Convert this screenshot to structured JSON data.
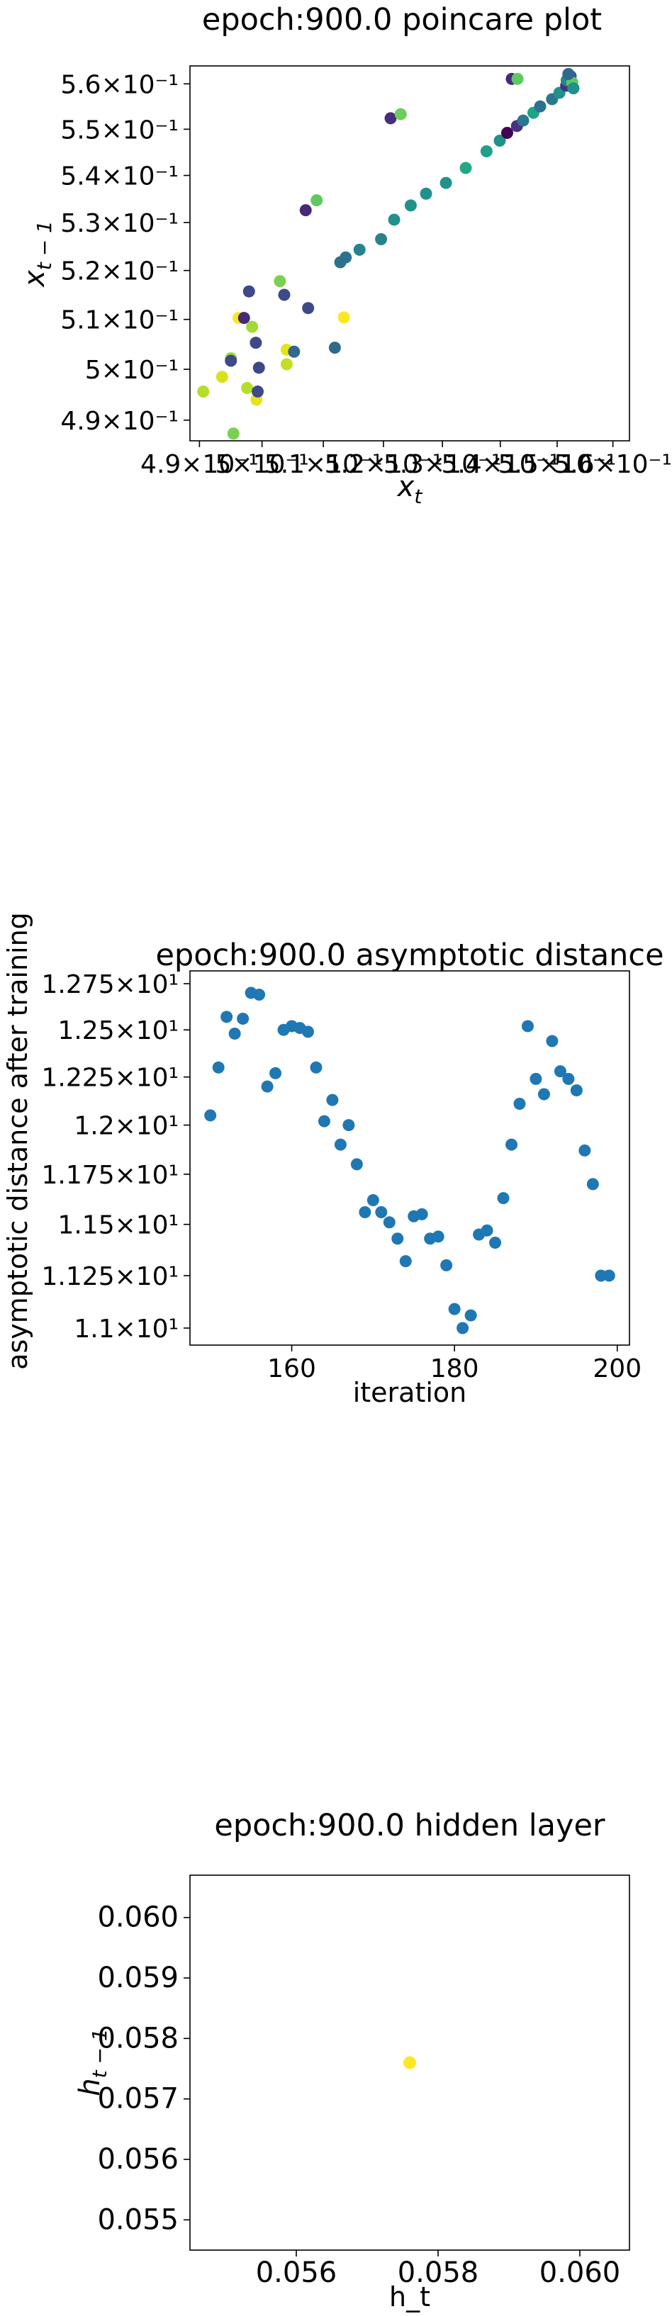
{
  "chart_data": [
    {
      "type": "scatter",
      "title": "epoch:900.0 poincare plot",
      "xlabel": "x_t",
      "ylabel": "x_{t-1}",
      "scale": "log",
      "xlim": [
        0.4885,
        0.563
      ],
      "ylim": [
        0.486,
        0.564
      ],
      "x_ticks": [
        {
          "v": 0.49,
          "label": "4.9×10⁻¹"
        },
        {
          "v": 0.5,
          "label": "5×10⁻¹"
        },
        {
          "v": 0.51,
          "label": "5.1×10⁻¹"
        },
        {
          "v": 0.52,
          "label": "5.2×10⁻¹"
        },
        {
          "v": 0.53,
          "label": "5.3×10⁻¹"
        },
        {
          "v": 0.54,
          "label": "5.4×10⁻¹"
        },
        {
          "v": 0.55,
          "label": "5.5×10⁻¹"
        },
        {
          "v": 0.56,
          "label": "5.6×10⁻¹"
        }
      ],
      "y_ticks": [
        {
          "v": 0.49,
          "label": "4.9×10⁻¹"
        },
        {
          "v": 0.5,
          "label": "5×10⁻¹"
        },
        {
          "v": 0.51,
          "label": "5.1×10⁻¹"
        },
        {
          "v": 0.52,
          "label": "5.2×10⁻¹"
        },
        {
          "v": 0.53,
          "label": "5.3×10⁻¹"
        },
        {
          "v": 0.54,
          "label": "5.4×10⁻¹"
        },
        {
          "v": 0.55,
          "label": "5.5×10⁻¹"
        },
        {
          "v": 0.56,
          "label": "5.6×10⁻¹"
        }
      ],
      "points": [
        {
          "x": 0.4906,
          "y": 0.4956,
          "c": "#b5de2b"
        },
        {
          "x": 0.4936,
          "y": 0.4985,
          "c": "#d8e219"
        },
        {
          "x": 0.495,
          "y": 0.5022,
          "c": "#a0da39"
        },
        {
          "x": 0.495,
          "y": 0.5017,
          "c": "#3e4989"
        },
        {
          "x": 0.4954,
          "y": 0.4874,
          "c": "#7ad151"
        },
        {
          "x": 0.4962,
          "y": 0.5103,
          "c": "#fde725"
        },
        {
          "x": 0.4971,
          "y": 0.5103,
          "c": "#482878"
        },
        {
          "x": 0.4976,
          "y": 0.4963,
          "c": "#b5de2b"
        },
        {
          "x": 0.4979,
          "y": 0.5157,
          "c": "#3e4989"
        },
        {
          "x": 0.4984,
          "y": 0.5085,
          "c": "#a0da39"
        },
        {
          "x": 0.499,
          "y": 0.5053,
          "c": "#3e4989"
        },
        {
          "x": 0.4991,
          "y": 0.494,
          "c": "#e5e419"
        },
        {
          "x": 0.4993,
          "y": 0.4956,
          "c": "#3e4989"
        },
        {
          "x": 0.4995,
          "y": 0.5003,
          "c": "#3e4989"
        },
        {
          "x": 0.5029,
          "y": 0.5178,
          "c": "#7ad151"
        },
        {
          "x": 0.5036,
          "y": 0.515,
          "c": "#3e4989"
        },
        {
          "x": 0.504,
          "y": 0.5039,
          "c": "#e5e419"
        },
        {
          "x": 0.504,
          "y": 0.501,
          "c": "#c2df23"
        },
        {
          "x": 0.5052,
          "y": 0.5035,
          "c": "#31688e"
        },
        {
          "x": 0.5071,
          "y": 0.5326,
          "c": "#482878"
        },
        {
          "x": 0.5075,
          "y": 0.5123,
          "c": "#3e4989"
        },
        {
          "x": 0.5089,
          "y": 0.5347,
          "c": "#5ec962"
        },
        {
          "x": 0.5119,
          "y": 0.5043,
          "c": "#31688e"
        },
        {
          "x": 0.5128,
          "y": 0.5217,
          "c": "#2c728e"
        },
        {
          "x": 0.5134,
          "y": 0.5104,
          "c": "#fde725"
        },
        {
          "x": 0.5137,
          "y": 0.5227,
          "c": "#2c728e"
        },
        {
          "x": 0.516,
          "y": 0.5243,
          "c": "#26828e"
        },
        {
          "x": 0.5196,
          "y": 0.5265,
          "c": "#26828e"
        },
        {
          "x": 0.5212,
          "y": 0.5524,
          "c": "#472d7b"
        },
        {
          "x": 0.5218,
          "y": 0.5306,
          "c": "#21918c"
        },
        {
          "x": 0.5229,
          "y": 0.5533,
          "c": "#6ccd5a"
        },
        {
          "x": 0.5246,
          "y": 0.5336,
          "c": "#21918c"
        },
        {
          "x": 0.5272,
          "y": 0.5361,
          "c": "#21918c"
        },
        {
          "x": 0.5306,
          "y": 0.5384,
          "c": "#21918c"
        },
        {
          "x": 0.534,
          "y": 0.5416,
          "c": "#22a884"
        },
        {
          "x": 0.5376,
          "y": 0.5452,
          "c": "#1fa088"
        },
        {
          "x": 0.5399,
          "y": 0.5475,
          "c": "#21918c"
        },
        {
          "x": 0.5412,
          "y": 0.5492,
          "c": "#440154"
        },
        {
          "x": 0.542,
          "y": 0.5611,
          "c": "#482878"
        },
        {
          "x": 0.543,
          "y": 0.5611,
          "c": "#5ec962"
        },
        {
          "x": 0.5429,
          "y": 0.5507,
          "c": "#46337e"
        },
        {
          "x": 0.544,
          "y": 0.5519,
          "c": "#2a788e"
        },
        {
          "x": 0.5458,
          "y": 0.5536,
          "c": "#20a486"
        },
        {
          "x": 0.547,
          "y": 0.555,
          "c": "#2c728e"
        },
        {
          "x": 0.5491,
          "y": 0.5566,
          "c": "#2a788e"
        },
        {
          "x": 0.5504,
          "y": 0.558,
          "c": "#21918c"
        },
        {
          "x": 0.5516,
          "y": 0.5596,
          "c": "#46337e"
        },
        {
          "x": 0.5517,
          "y": 0.5608,
          "c": "#25848e"
        },
        {
          "x": 0.5524,
          "y": 0.5617,
          "c": "#3b528b"
        },
        {
          "x": 0.5527,
          "y": 0.5603,
          "c": "#5ec962"
        },
        {
          "x": 0.5529,
          "y": 0.559,
          "c": "#21918c"
        },
        {
          "x": 0.552,
          "y": 0.5622,
          "c": "#31688e"
        }
      ]
    },
    {
      "type": "scatter",
      "title": "epoch:900.0 asymptotic distance",
      "xlabel": "iteration",
      "ylabel": "asymptotic distance after training",
      "y_scale": "log",
      "xlim": [
        147.5,
        201.5
      ],
      "ylim": [
        10.92,
        12.82
      ],
      "point_color": "#1f77b4",
      "x_ticks": [
        {
          "v": 160,
          "label": "160"
        },
        {
          "v": 180,
          "label": "180"
        },
        {
          "v": 200,
          "label": "200"
        }
      ],
      "y_ticks": [
        {
          "v": 11.0,
          "label": "1.1×10¹"
        },
        {
          "v": 11.25,
          "label": "1.125×10¹"
        },
        {
          "v": 11.5,
          "label": "1.15×10¹"
        },
        {
          "v": 11.75,
          "label": "1.175×10¹"
        },
        {
          "v": 12.0,
          "label": "1.2×10¹"
        },
        {
          "v": 12.25,
          "label": "1.225×10¹"
        },
        {
          "v": 12.5,
          "label": "1.25×10¹"
        },
        {
          "v": 12.75,
          "label": "1.275×10¹"
        }
      ],
      "x": [
        150,
        151,
        152,
        153,
        154,
        155,
        156,
        157,
        158,
        159,
        160,
        161,
        162,
        163,
        164,
        165,
        166,
        167,
        168,
        169,
        170,
        171,
        172,
        173,
        174,
        175,
        176,
        177,
        178,
        179,
        180,
        181,
        182,
        183,
        184,
        185,
        186,
        187,
        188,
        189,
        190,
        191,
        192,
        193,
        194,
        195,
        196,
        197,
        198,
        199
      ],
      "y": [
        12.05,
        12.3,
        12.57,
        12.48,
        12.56,
        12.7,
        12.69,
        12.2,
        12.27,
        12.5,
        12.52,
        12.51,
        12.49,
        12.3,
        12.02,
        12.13,
        11.9,
        12.0,
        11.8,
        11.56,
        11.62,
        11.56,
        11.51,
        11.43,
        11.32,
        11.54,
        11.55,
        11.43,
        11.44,
        11.3,
        11.09,
        11.0,
        11.06,
        11.45,
        11.47,
        11.41,
        11.63,
        11.9,
        12.11,
        12.52,
        12.24,
        12.16,
        12.44,
        12.28,
        12.24,
        12.18,
        11.87,
        11.7,
        11.25,
        11.25
      ]
    },
    {
      "type": "scatter",
      "title": "epoch:900.0 hidden layer",
      "xlabel": "h_t",
      "ylabel": "h_{t-1}",
      "xlim": [
        0.0545,
        0.0607
      ],
      "ylim": [
        0.0545,
        0.0607
      ],
      "x_ticks": [
        {
          "v": 0.056,
          "label": "0.056"
        },
        {
          "v": 0.058,
          "label": "0.058"
        },
        {
          "v": 0.06,
          "label": "0.060"
        }
      ],
      "y_ticks": [
        {
          "v": 0.055,
          "label": "0.055"
        },
        {
          "v": 0.056,
          "label": "0.056"
        },
        {
          "v": 0.057,
          "label": "0.057"
        },
        {
          "v": 0.058,
          "label": "0.058"
        },
        {
          "v": 0.059,
          "label": "0.059"
        },
        {
          "v": 0.06,
          "label": "0.060"
        }
      ],
      "points": [
        {
          "x": 0.0576,
          "y": 0.0576,
          "c": "#fde725"
        }
      ]
    }
  ]
}
